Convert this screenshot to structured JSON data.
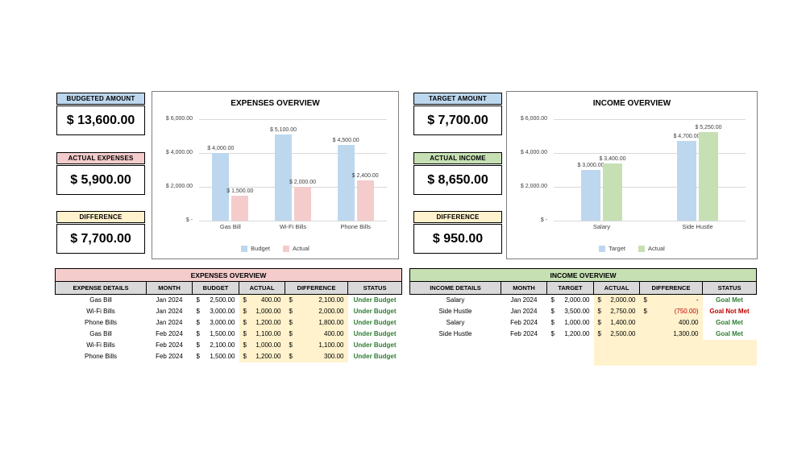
{
  "colors": {
    "blue": "#BDD7EE",
    "pink": "#F4CCCC",
    "green": "#C6E0B4",
    "yellow": "#FFF2CC",
    "header_grey": "#D9D9D9",
    "status_colors": {
      "Under Budget": "#2E7D32",
      "Goal Met": "#2E7D32",
      "Goal Not Met": "#C00000"
    }
  },
  "summary_left": {
    "budgeted": {
      "label": "BUDGETED AMOUNT",
      "value": "$ 13,600.00"
    },
    "actual": {
      "label": "ACTUAL EXPENSES",
      "value": "$ 5,900.00"
    },
    "difference": {
      "label": "DIFFERENCE",
      "value": "$ 7,700.00"
    }
  },
  "summary_right": {
    "target": {
      "label": "TARGET AMOUNT",
      "value": "$ 7,700.00"
    },
    "actual": {
      "label": "ACTUAL INCOME",
      "value": "$ 8,650.00"
    },
    "difference": {
      "label": "DIFFERENCE",
      "value": "$ 950.00"
    }
  },
  "chart_data": [
    {
      "type": "bar",
      "title": "EXPENSES OVERVIEW",
      "categories": [
        "Gas Bill",
        "Wi-Fi Bills",
        "Phone Bills"
      ],
      "series": [
        {
          "name": "Budget",
          "color": "#BDD7EE",
          "values": [
            4000,
            5100,
            4500
          ],
          "labels": [
            "$ 4,000.00",
            "$ 5,100.00",
            "$ 4,500.00"
          ]
        },
        {
          "name": "Actual",
          "color": "#F4CCCC",
          "values": [
            1500,
            2000,
            2400
          ],
          "labels": [
            "$ 1,500.00",
            "$ 2,000.00",
            "$ 2,400.00"
          ]
        }
      ],
      "ylim": [
        0,
        6000
      ],
      "ticks": [
        {
          "v": 6000,
          "label": "$ 6,000.00"
        },
        {
          "v": 4000,
          "label": "$ 4,000.00"
        },
        {
          "v": 2000,
          "label": "$ 2,000.00"
        },
        {
          "v": 0,
          "label": "$ -"
        }
      ],
      "grid": true,
      "legend_position": "bottom"
    },
    {
      "type": "bar",
      "title": "INCOME OVERVIEW",
      "categories": [
        "Salary",
        "Side Hustle"
      ],
      "series": [
        {
          "name": "Target",
          "color": "#BDD7EE",
          "values": [
            3000,
            4700
          ],
          "labels": [
            "$ 3,000.00",
            "$ 4,700.00"
          ]
        },
        {
          "name": "Actual",
          "color": "#C6E0B4",
          "values": [
            3400,
            5250
          ],
          "labels": [
            "$ 3,400.00",
            "$ 5,250.00"
          ]
        }
      ],
      "ylim": [
        0,
        6000
      ],
      "ticks": [
        {
          "v": 6000,
          "label": "$ 6,000.00"
        },
        {
          "v": 4000,
          "label": "$ 4,000.00"
        },
        {
          "v": 2000,
          "label": "$ 2,000.00"
        },
        {
          "v": 0,
          "label": "$ -"
        }
      ],
      "grid": true,
      "legend_position": "bottom"
    }
  ],
  "expenses_table": {
    "name": "expenses-table",
    "title": "EXPENSES OVERVIEW",
    "title_bg": "#F4CCCC",
    "headers": [
      "EXPENSE DETAILS",
      "MONTH",
      "BUDGET",
      "ACTUAL",
      "DIFFERENCE",
      "STATUS"
    ],
    "rows": [
      [
        "Gas Bill",
        "Jan 2024",
        "$ 2,500.00",
        "$ 400.00",
        "$ 2,100.00",
        "Under Budget"
      ],
      [
        "Wi-Fi Bills",
        "Jan 2024",
        "$ 3,000.00",
        "$ 1,000.00",
        "$ 2,000.00",
        "Under Budget"
      ],
      [
        "Phone Bills",
        "Jan 2024",
        "$ 3,000.00",
        "$ 1,200.00",
        "$ 1,800.00",
        "Under Budget"
      ],
      [
        "Gas Bill",
        "Feb 2024",
        "$ 1,500.00",
        "$ 1,100.00",
        "$ 400.00",
        "Under Budget"
      ],
      [
        "Wi-Fi Bills",
        "Feb 2024",
        "$ 2,100.00",
        "$ 1,000.00",
        "$ 1,100.00",
        "Under Budget"
      ],
      [
        "Phone Bills",
        "Feb 2024",
        "$ 1,500.00",
        "$ 1,200.00",
        "$ 300.00",
        "Under Budget"
      ]
    ],
    "yellow_columns": [
      3,
      4
    ],
    "filler_rows": 0,
    "filler_columns": []
  },
  "income_table": {
    "name": "income-table",
    "title": "INCOME OVERVIEW",
    "title_bg": "#C6E0B4",
    "headers": [
      "INCOME DETAILS",
      "MONTH",
      "TARGET",
      "ACTUAL",
      "DIFFERENCE",
      "STATUS"
    ],
    "rows": [
      [
        "Salary",
        "Jan 2024",
        "$ 2,000.00",
        "$ 2,000.00",
        "$ -",
        "Goal Met"
      ],
      [
        "Side Hustle",
        "Jan 2024",
        "$ 3,500.00",
        "$ 2,750.00",
        "$ (750.00)",
        "Goal Not Met"
      ],
      [
        "Salary",
        "Feb 2024",
        "$ 1,000.00",
        "$ 1,400.00",
        "400.00",
        "Goal Met"
      ],
      [
        "Side Hustle",
        "Feb 2024",
        "$ 1,200.00",
        "$ 2,500.00",
        "1,300.00",
        "Goal Met"
      ]
    ],
    "yellow_columns": [
      3,
      4
    ],
    "filler_rows": 2,
    "filler_columns": [
      3,
      4,
      5
    ]
  }
}
